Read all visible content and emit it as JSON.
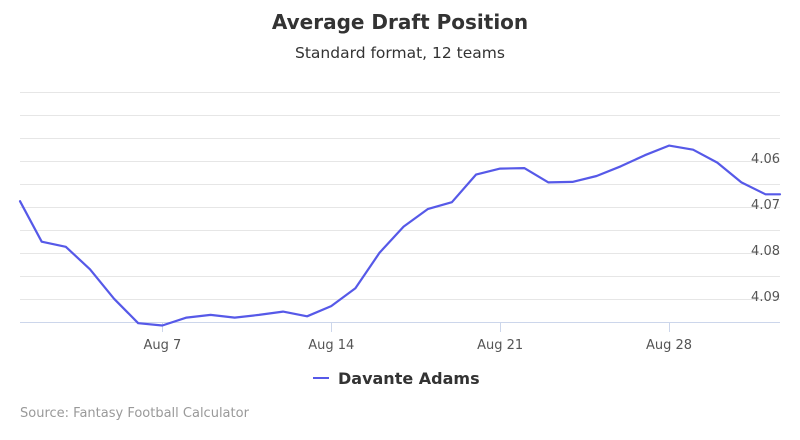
{
  "colors": {
    "series": "#5659e8",
    "grid": "#e6e6e6",
    "axis": "#ccd6eb",
    "text": "#333333",
    "credit": "#999999"
  },
  "credit": "Source: Fantasy Football Calculator",
  "chart_data": {
    "type": "line",
    "title": "Average Draft Position",
    "subtitle": "Standard format, 12 teams",
    "xlabel": "",
    "ylabel": "",
    "x_tick_labels": [
      "Aug 7",
      "Aug 14",
      "Aug 21",
      "Aug 28"
    ],
    "x_tick_days": [
      7,
      14,
      21,
      28
    ],
    "xlim": [
      1.1,
      32.6
    ],
    "y_tick_labels": [
      "4.06",
      "4.07",
      "4.08",
      "4.09"
    ],
    "y_tick_values": [
      4.06,
      4.07,
      4.08,
      4.09
    ],
    "ylim": [
      4.09375,
      4.04375
    ],
    "y_reversed": true,
    "grid": true,
    "legend_position": "bottom-center",
    "x": [
      1.1,
      2,
      3,
      4,
      5,
      6,
      7,
      8,
      9,
      10,
      11,
      12,
      13,
      14,
      15,
      16,
      17,
      18,
      19,
      20,
      21,
      22,
      23,
      24,
      25,
      26,
      27,
      28,
      29,
      30,
      31,
      32,
      32.6
    ],
    "series": [
      {
        "name": "Davante Adams",
        "values": [
          4.0675,
          4.0763,
          4.0774,
          4.0823,
          4.0887,
          4.094,
          4.0945,
          4.0928,
          4.0922,
          4.0928,
          4.0922,
          4.0915,
          4.0925,
          4.0903,
          4.0864,
          4.0787,
          4.073,
          4.0692,
          4.0677,
          4.0617,
          4.0604,
          4.0603,
          4.0634,
          4.0633,
          4.062,
          4.0599,
          4.0575,
          4.0554,
          4.0563,
          4.0591,
          4.0634,
          4.066,
          4.066
        ]
      }
    ]
  }
}
